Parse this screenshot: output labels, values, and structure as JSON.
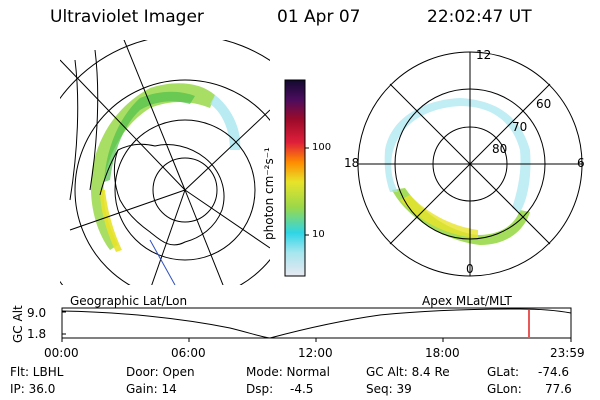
{
  "header": {
    "title": "Ultraviolet Imager",
    "date": "01 Apr 07",
    "time": "22:02:47 UT"
  },
  "colorbar": {
    "label": "photon cm⁻²s⁻¹",
    "ticks": [
      "100",
      "10"
    ],
    "scale": "log",
    "colors": [
      "#e8e8f0",
      "#a6e6ef",
      "#2fd5e6",
      "#9ad84a",
      "#e8e32a",
      "#ff8c00",
      "#e0203a",
      "#9b0a2a",
      "#4b0c5e",
      "#120a30"
    ]
  },
  "maps": {
    "left_label": "Geographic Lat/Lon",
    "right_label": "Apex  MLat/MLT",
    "mlt_labels": [
      "12",
      "18",
      "6",
      "0"
    ],
    "mlat_labels": [
      "60",
      "70",
      "80"
    ]
  },
  "altitude_plot": {
    "ylabel": "GC Alt",
    "yticks": [
      "9.0",
      "1.8"
    ],
    "xticks": [
      "00:00",
      "06:00",
      "12:00",
      "18:00",
      "23:59"
    ],
    "current_time": "22:02",
    "line_color": "#e02020"
  },
  "footer": {
    "filter": "Flt: LBHL",
    "ip": "IP: 36.0",
    "door": "Door: Open",
    "gain": "Gain: 14",
    "mode": "Mode: Normal",
    "dsp_label": "Dsp:",
    "dsp_value": "-4.5",
    "gc_alt": "GC Alt: 8.4 Re",
    "seq": "Seq: 39",
    "glat_label": "GLat:",
    "glat_value": "-74.6",
    "glon_label": "GLon:",
    "glon_value": "77.6"
  }
}
